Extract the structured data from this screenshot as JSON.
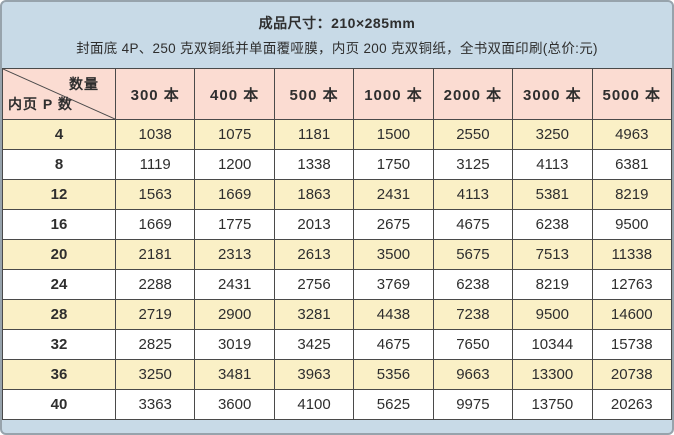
{
  "header": {
    "line1": "成品尺寸：210×285mm",
    "line2": "封面底 4P、250 克双铜纸并单面覆哑膜，内页 200 克双铜纸，全书双面印刷(总价:元)"
  },
  "chart_data": {
    "type": "table",
    "title": "成品尺寸：210×285mm",
    "subtitle": "封面底 4P、250 克双铜纸并单面覆哑膜，内页 200 克双铜纸，全书双面印刷(总价:元)",
    "corner": {
      "top_right": "数量",
      "bottom_left": "内页 P 数"
    },
    "columns": [
      "300 本",
      "400 本",
      "500 本",
      "1000 本",
      "2000 本",
      "3000 本",
      "5000 本"
    ],
    "rows": [
      {
        "pages": "4",
        "values": [
          "1038",
          "1075",
          "1181",
          "1500",
          "2550",
          "3250",
          "4963"
        ]
      },
      {
        "pages": "8",
        "values": [
          "1119",
          "1200",
          "1338",
          "1750",
          "3125",
          "4113",
          "6381"
        ]
      },
      {
        "pages": "12",
        "values": [
          "1563",
          "1669",
          "1863",
          "2431",
          "4113",
          "5381",
          "8219"
        ]
      },
      {
        "pages": "16",
        "values": [
          "1669",
          "1775",
          "2013",
          "2675",
          "4675",
          "6238",
          "9500"
        ]
      },
      {
        "pages": "20",
        "values": [
          "2181",
          "2313",
          "2613",
          "3500",
          "5675",
          "7513",
          "11338"
        ]
      },
      {
        "pages": "24",
        "values": [
          "2288",
          "2431",
          "2756",
          "3769",
          "6238",
          "8219",
          "12763"
        ]
      },
      {
        "pages": "28",
        "values": [
          "2719",
          "2900",
          "3281",
          "4438",
          "7238",
          "9500",
          "14600"
        ]
      },
      {
        "pages": "32",
        "values": [
          "2825",
          "3019",
          "3425",
          "4675",
          "7650",
          "10344",
          "15738"
        ]
      },
      {
        "pages": "36",
        "values": [
          "3250",
          "3481",
          "3963",
          "5356",
          "9663",
          "13300",
          "20738"
        ]
      },
      {
        "pages": "40",
        "values": [
          "3363",
          "3600",
          "4100",
          "5625",
          "9975",
          "13750",
          "20263"
        ]
      }
    ]
  },
  "colors": {
    "background_blue": "#C8DAE7",
    "header_pink": "#FBDCD2",
    "row_cream": "#FAF0C6",
    "row_white": "#FFFFFF",
    "grid_line": "#4A4A4A",
    "outer_border": "#97A3AC",
    "text": "#2E2E2E"
  }
}
